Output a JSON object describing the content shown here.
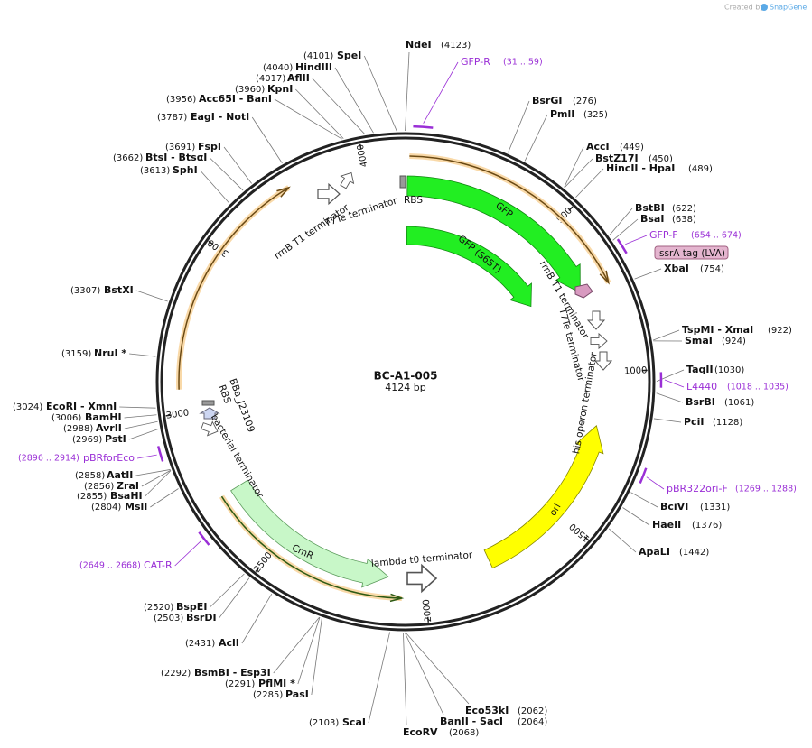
{
  "map": {
    "title": "BC-A1-005",
    "length": "4124 bp",
    "ticks": [
      500,
      1000,
      1500,
      2000,
      2500,
      3000,
      3500,
      4000
    ],
    "enzymes": [
      {
        "name": "NdeI",
        "site": "(4123)"
      },
      {
        "name": "BsrGI",
        "site": "(276)"
      },
      {
        "name": "PmlI",
        "site": "(325)"
      },
      {
        "name": "AccI",
        "site": "(449)"
      },
      {
        "name": "BstZ17I",
        "site": "(450)"
      },
      {
        "name": "HincII - HpaI",
        "site": "(489)"
      },
      {
        "name": "BstBI",
        "site": "(622)"
      },
      {
        "name": "BsaI",
        "site": "(638)"
      },
      {
        "name": "XbaI",
        "site": "(754)"
      },
      {
        "name": "TspMI - XmaI",
        "site": "(922)"
      },
      {
        "name": "SmaI",
        "site": "(924)"
      },
      {
        "name": "TaqII",
        "site": "(1030)"
      },
      {
        "name": "BsrBI",
        "site": "(1061)"
      },
      {
        "name": "PciI",
        "site": "(1128)"
      },
      {
        "name": "BciVI",
        "site": "(1331)"
      },
      {
        "name": "HaeII",
        "site": "(1376)"
      },
      {
        "name": "ApaLI",
        "site": "(1442)"
      },
      {
        "name": "Eco53kI",
        "site": "(2062)"
      },
      {
        "name": "BanII - SacI",
        "site": "(2064)"
      },
      {
        "name": "EcoRV",
        "site": "(2068)"
      },
      {
        "name": "SpeI",
        "site": "(4101)"
      },
      {
        "name": "HindIII",
        "site": "(4040)"
      },
      {
        "name": "AflII",
        "site": "(4017)"
      },
      {
        "name": "KpnI",
        "site": "(3960)"
      },
      {
        "name": "Acc65I - BanI",
        "site": "(3956)"
      },
      {
        "name": "EagI - NotI",
        "site": "(3787)"
      },
      {
        "name": "FspI",
        "site": "(3691)"
      },
      {
        "name": "BtsI - BtsαI",
        "site": "(3662)"
      },
      {
        "name": "SphI",
        "site": "(3613)"
      },
      {
        "name": "BstXI",
        "site": "(3307)"
      },
      {
        "name": "NruI *",
        "site": "(3159)"
      },
      {
        "name": "EcoRI - XmnI",
        "site": "(3024)"
      },
      {
        "name": "BamHI",
        "site": "(3006)"
      },
      {
        "name": "AvrII",
        "site": "(2988)"
      },
      {
        "name": "PstI",
        "site": "(2969)"
      },
      {
        "name": "AatII",
        "site": "(2858)"
      },
      {
        "name": "ZraI",
        "site": "(2856)"
      },
      {
        "name": "BsaHI",
        "site": "(2855)"
      },
      {
        "name": "MslI",
        "site": "(2804)"
      },
      {
        "name": "BspEI",
        "site": "(2520)"
      },
      {
        "name": "BsrDI",
        "site": "(2503)"
      },
      {
        "name": "AclI",
        "site": "(2431)"
      },
      {
        "name": "BsmBI - Esp3I",
        "site": "(2292)"
      },
      {
        "name": "PflMI *",
        "site": "(2291)"
      },
      {
        "name": "PasI",
        "site": "(2285)"
      },
      {
        "name": "ScaI",
        "site": "(2103)"
      }
    ],
    "primers": [
      {
        "name": "GFP-R",
        "range": "(31 .. 59)"
      },
      {
        "name": "GFP-F",
        "range": "(654 .. 674)"
      },
      {
        "name": "L4440",
        "range": "(1018 .. 1035)"
      },
      {
        "name": "pBR322ori-F",
        "range": "(1269 .. 1288)"
      },
      {
        "name": "pBRforEco",
        "range": "(2896 .. 2914)"
      },
      {
        "name": "CAT-R",
        "range": "(2649 .. 2668)"
      }
    ],
    "features": [
      "GFP",
      "GFP (S65T)",
      "ori",
      "CmR",
      "ssrA tag (LVA)",
      "RBS",
      "rrnB T1 terminator",
      "T7Te terminator",
      "rrnB T1 terminator",
      "T7Te terminator",
      "his operon terminator",
      "lambda t0 terminator",
      "bacterial terminator",
      "BBa_J23109",
      "RBS"
    ],
    "watermark": {
      "prefix": "Created by",
      "brand": "SnapGene"
    }
  }
}
